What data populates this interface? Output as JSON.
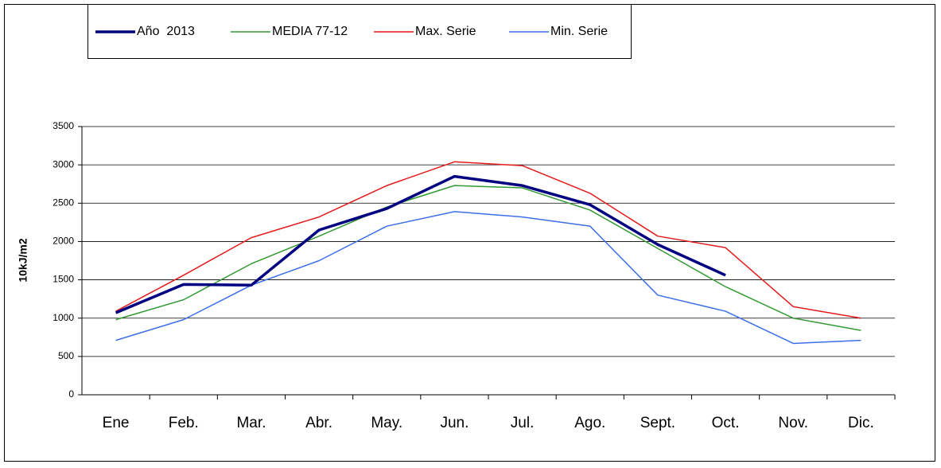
{
  "chart_data": {
    "type": "line",
    "y_label": "10kJ/m2",
    "categories": [
      "Ene",
      "Feb.",
      "Mar.",
      "Abr.",
      "May.",
      "Jun.",
      "Jul.",
      "Ago.",
      "Sept.",
      "Oct.",
      "Nov.",
      "Dic."
    ],
    "series": [
      {
        "name": "Año  2013",
        "color": "#000080",
        "width": 3.5,
        "values": [
          1070,
          1440,
          1430,
          2150,
          2430,
          2850,
          2730,
          2480,
          1960,
          1560,
          null,
          null
        ]
      },
      {
        "name": "MEDIA 77-12",
        "color": "#339933",
        "width": 1.5,
        "values": [
          980,
          1240,
          1710,
          2070,
          2450,
          2730,
          2700,
          2410,
          1910,
          1410,
          1000,
          840
        ]
      },
      {
        "name": "Max. Serie",
        "color": "#e31a1c",
        "width": 1.5,
        "values": [
          1090,
          1560,
          2050,
          2320,
          2730,
          3040,
          2990,
          2630,
          2070,
          1920,
          1150,
          1000
        ]
      },
      {
        "name": "Min. Serie",
        "color": "#3c6fe8",
        "width": 1.5,
        "values": [
          710,
          980,
          1430,
          1750,
          2200,
          2390,
          2320,
          2200,
          1300,
          1090,
          670,
          710
        ]
      }
    ],
    "ylim": [
      0,
      3500
    ],
    "yticks": [
      0,
      500,
      1000,
      1500,
      2000,
      2500,
      3000,
      3500
    ],
    "grid": true
  }
}
